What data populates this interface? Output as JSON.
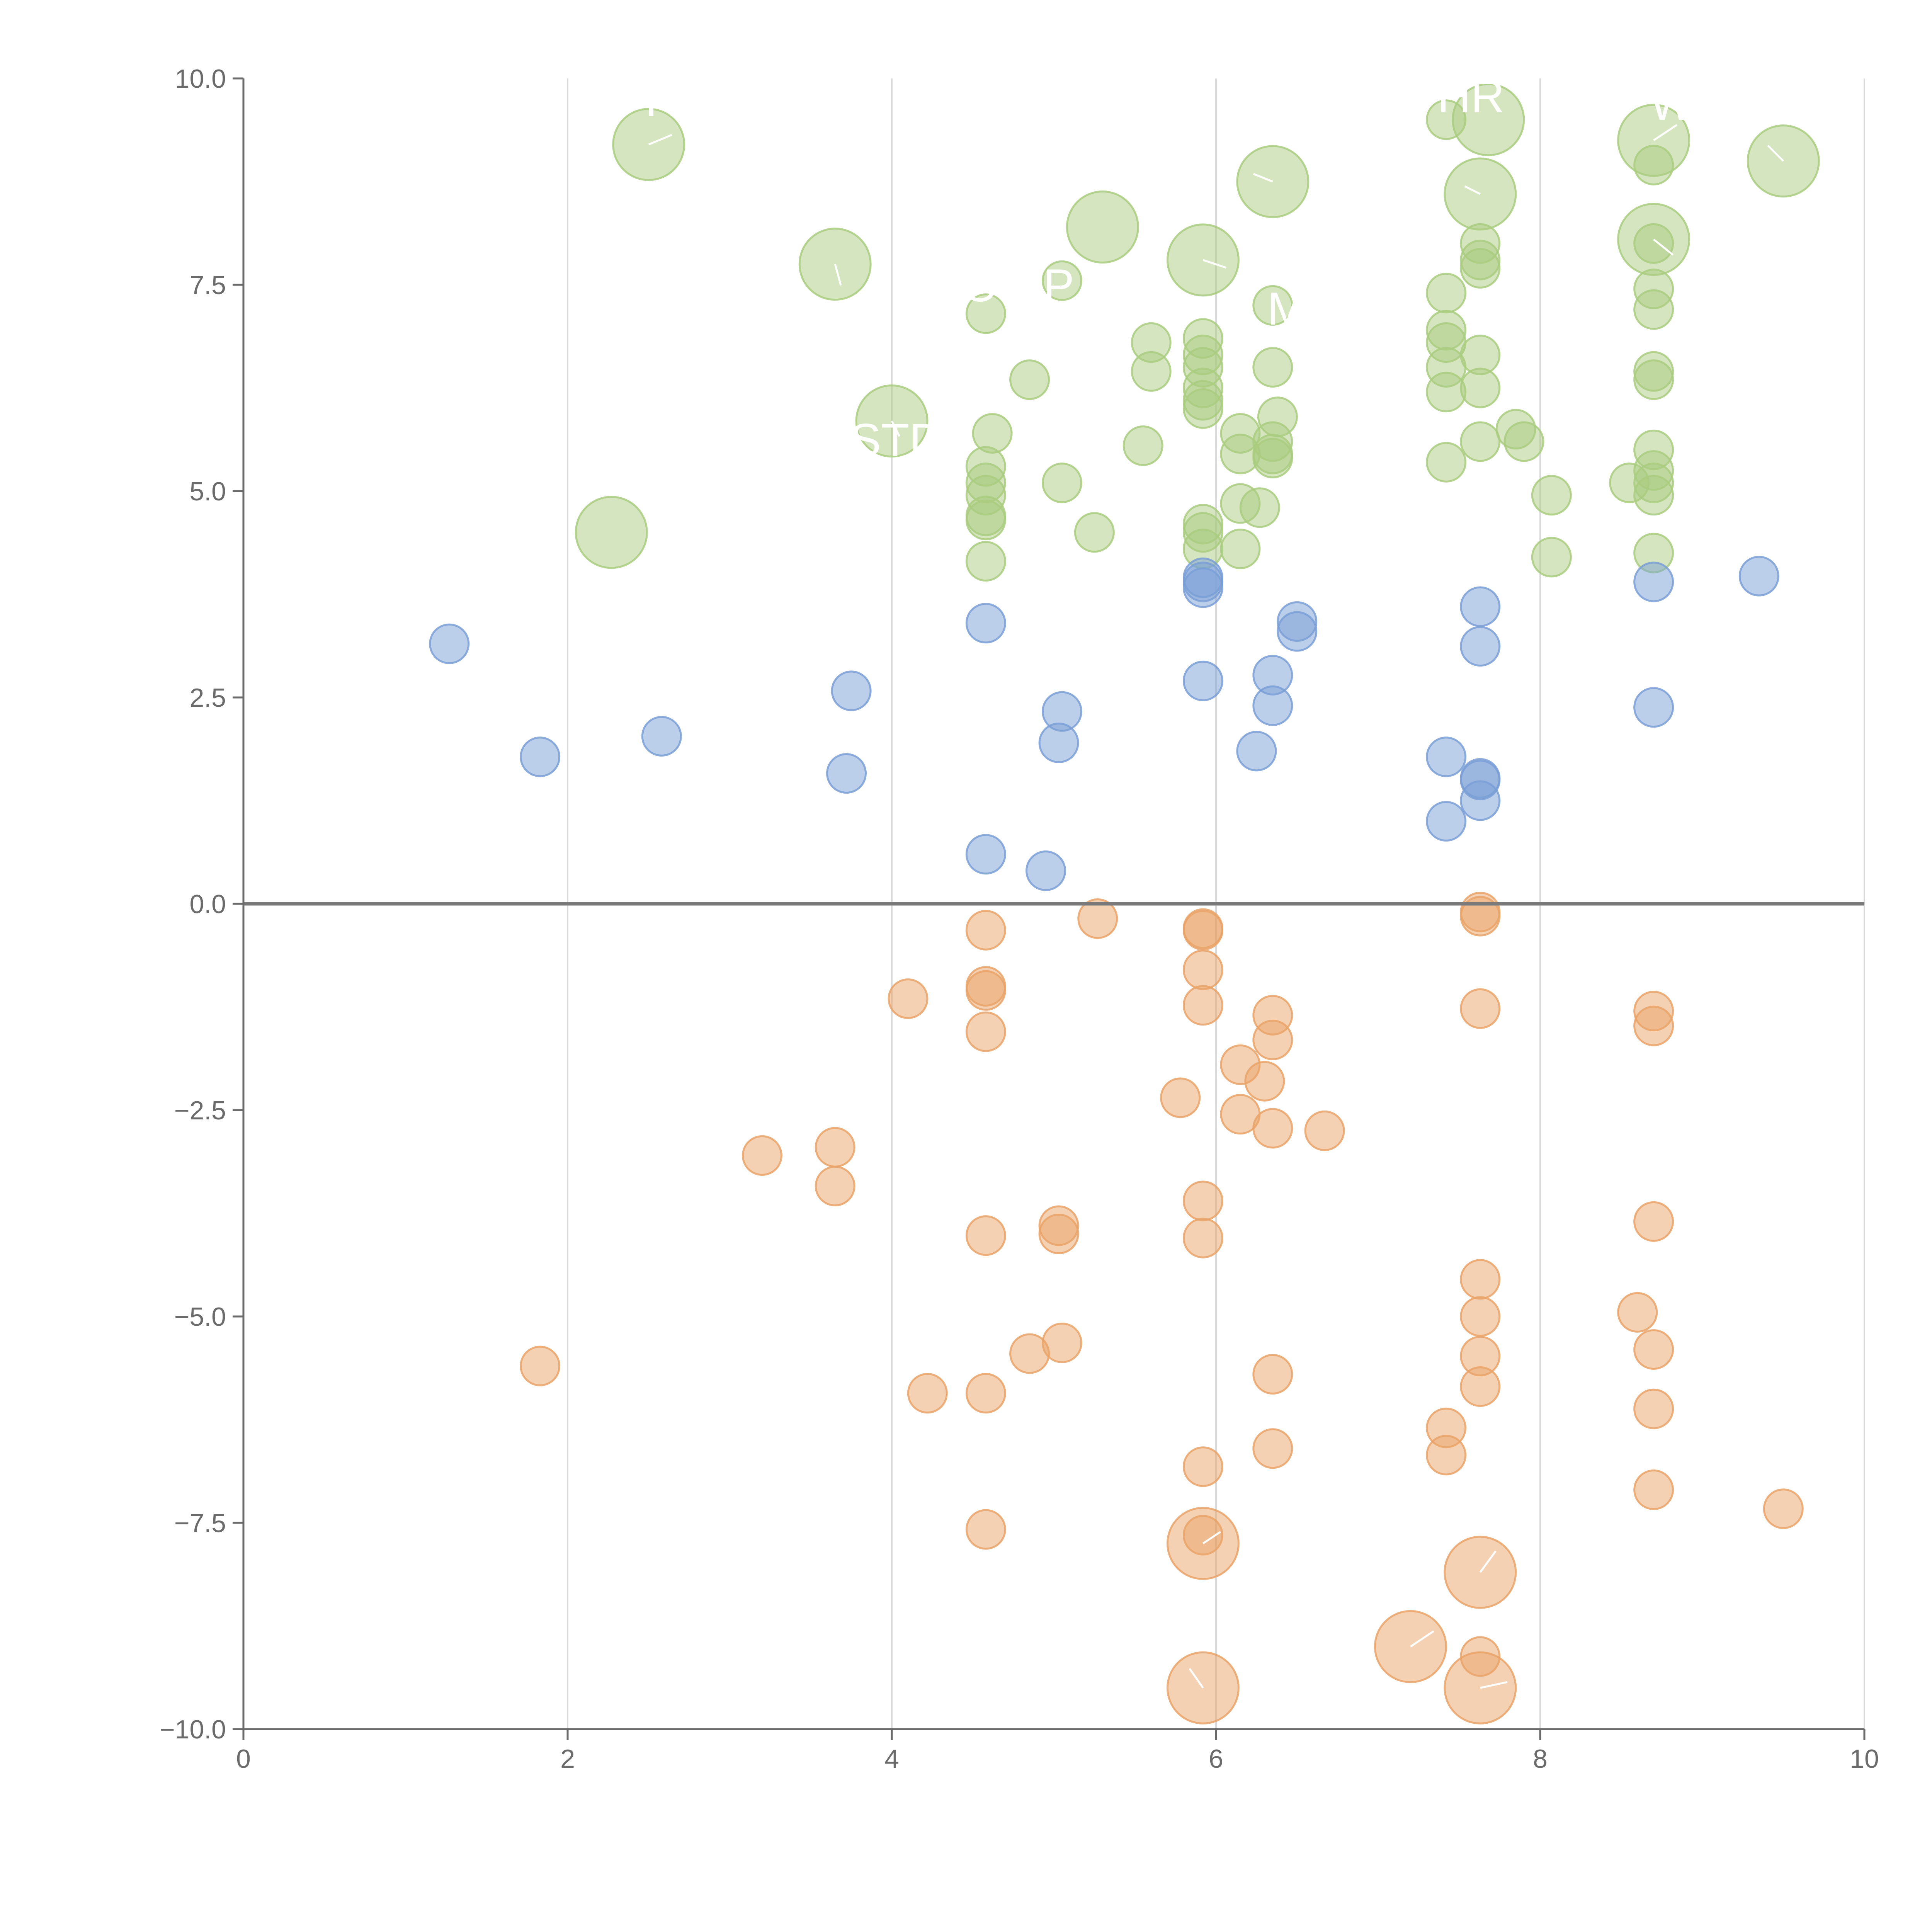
{
  "chart_data": {
    "type": "scatter",
    "title": "",
    "xlabel": "",
    "ylabel": "",
    "xlim": [
      0,
      10
    ],
    "ylim": [
      -10,
      10
    ],
    "grid": "vertical",
    "zero_line": true,
    "x_ticks": [
      "0",
      "2",
      "4",
      "6",
      "8",
      "10"
    ],
    "x_tick_values": [
      0,
      2,
      4,
      6,
      8,
      10
    ],
    "y_ticks": [
      "10.0",
      "7.5",
      "5.0",
      "2.5",
      "0.0",
      "−2.5",
      "−5.0",
      "−7.5",
      "−10.0"
    ],
    "y_tick_values": [
      10,
      7.5,
      5,
      2.5,
      0,
      -2.5,
      -5,
      -7.5,
      -10
    ],
    "colors": {
      "green": "#a9cc7f",
      "blue": "#7a9fd6",
      "orange": "#e9a368",
      "axis": "#6b6b6b",
      "grid": "#d9d9d9"
    },
    "annotations": [
      "H",
      "HR",
      "W",
      "O",
      "P",
      "M",
      "STD"
    ],
    "series": [
      {
        "name": "green",
        "color": "#a9cc7f",
        "points": [
          [
            2.5,
            9.2,
            2
          ],
          [
            3.65,
            7.75,
            2
          ],
          [
            4.0,
            5.85,
            2
          ],
          [
            2.27,
            4.5,
            2
          ],
          [
            5.3,
            8.2,
            2
          ],
          [
            5.92,
            7.8,
            2
          ],
          [
            6.35,
            8.75,
            2
          ],
          [
            7.68,
            9.5,
            2
          ],
          [
            7.63,
            8.6,
            2
          ],
          [
            8.7,
            9.25,
            2
          ],
          [
            8.7,
            8.05,
            2
          ],
          [
            9.5,
            9.0,
            2
          ],
          [
            7.42,
            9.5,
            1
          ],
          [
            8.7,
            8.95,
            1
          ],
          [
            7.63,
            8.0,
            1
          ],
          [
            7.63,
            7.8,
            1
          ],
          [
            7.63,
            7.7,
            1
          ],
          [
            8.7,
            8.0,
            1
          ],
          [
            8.7,
            7.45,
            1
          ],
          [
            8.7,
            7.2,
            1
          ],
          [
            7.42,
            7.4,
            1
          ],
          [
            7.42,
            6.95,
            1
          ],
          [
            7.42,
            6.8,
            1
          ],
          [
            7.42,
            6.5,
            1
          ],
          [
            7.42,
            6.2,
            1
          ],
          [
            7.63,
            6.65,
            1
          ],
          [
            7.63,
            6.25,
            1
          ],
          [
            7.63,
            5.6,
            1
          ],
          [
            7.42,
            5.35,
            1
          ],
          [
            7.85,
            5.75,
            1
          ],
          [
            7.9,
            5.6,
            1
          ],
          [
            8.07,
            4.95,
            1
          ],
          [
            8.07,
            4.2,
            1
          ],
          [
            8.55,
            5.1,
            1
          ],
          [
            8.7,
            6.45,
            1
          ],
          [
            8.7,
            6.35,
            1
          ],
          [
            8.7,
            5.5,
            1
          ],
          [
            8.7,
            5.25,
            1
          ],
          [
            8.7,
            5.1,
            1
          ],
          [
            8.7,
            4.95,
            1
          ],
          [
            8.7,
            4.25,
            1
          ],
          [
            5.05,
            7.55,
            1
          ],
          [
            4.58,
            7.15,
            1
          ],
          [
            4.85,
            6.35,
            1
          ],
          [
            5.6,
            6.8,
            1
          ],
          [
            5.6,
            6.45,
            1
          ],
          [
            5.92,
            6.85,
            1
          ],
          [
            5.92,
            6.65,
            1
          ],
          [
            5.92,
            6.5,
            1
          ],
          [
            5.92,
            6.25,
            1
          ],
          [
            5.92,
            6.1,
            1
          ],
          [
            5.92,
            6.0,
            1
          ],
          [
            6.35,
            7.25,
            1
          ],
          [
            6.35,
            6.5,
            1
          ],
          [
            6.38,
            5.9,
            1
          ],
          [
            6.15,
            5.7,
            1
          ],
          [
            6.15,
            5.45,
            1
          ],
          [
            6.35,
            5.6,
            1
          ],
          [
            6.35,
            5.45,
            1
          ],
          [
            6.35,
            5.4,
            1
          ],
          [
            5.55,
            5.55,
            1
          ],
          [
            4.62,
            5.7,
            1
          ],
          [
            4.58,
            5.3,
            1
          ],
          [
            4.58,
            5.1,
            1
          ],
          [
            4.58,
            4.95,
            1
          ],
          [
            4.58,
            4.7,
            1
          ],
          [
            4.58,
            4.65,
            1
          ],
          [
            4.58,
            4.15,
            1
          ],
          [
            5.05,
            5.1,
            1
          ],
          [
            5.25,
            4.5,
            1
          ],
          [
            5.92,
            4.6,
            1
          ],
          [
            5.92,
            4.5,
            1
          ],
          [
            5.92,
            4.3,
            1
          ],
          [
            6.15,
            4.3,
            1
          ],
          [
            6.15,
            4.85,
            1
          ],
          [
            6.27,
            4.8,
            1
          ]
        ]
      },
      {
        "name": "blue",
        "color": "#7a9fd6",
        "points": [
          [
            1.27,
            3.15,
            1
          ],
          [
            1.83,
            1.78,
            1
          ],
          [
            2.58,
            2.03,
            1
          ],
          [
            3.75,
            2.58,
            1
          ],
          [
            3.72,
            1.58,
            1
          ],
          [
            4.58,
            3.4,
            1
          ],
          [
            4.58,
            0.6,
            1
          ],
          [
            4.95,
            0.4,
            1
          ],
          [
            5.05,
            2.33,
            1
          ],
          [
            5.03,
            1.95,
            1
          ],
          [
            5.92,
            3.95,
            1
          ],
          [
            5.92,
            3.9,
            1
          ],
          [
            5.92,
            3.83,
            1
          ],
          [
            5.92,
            2.7,
            1
          ],
          [
            6.5,
            3.42,
            1
          ],
          [
            6.5,
            3.3,
            1
          ],
          [
            6.35,
            2.77,
            1
          ],
          [
            6.35,
            2.4,
            1
          ],
          [
            6.25,
            1.85,
            1
          ],
          [
            7.42,
            1.78,
            1
          ],
          [
            7.42,
            1.0,
            1
          ],
          [
            7.63,
            3.6,
            1
          ],
          [
            7.63,
            3.12,
            1
          ],
          [
            7.63,
            1.52,
            1
          ],
          [
            7.63,
            1.5,
            1
          ],
          [
            7.63,
            1.25,
            1
          ],
          [
            8.7,
            3.9,
            1
          ],
          [
            8.7,
            2.38,
            1
          ],
          [
            9.35,
            3.97,
            1
          ]
        ]
      },
      {
        "name": "orange",
        "color": "#e9a368",
        "points": [
          [
            5.27,
            -0.18,
            1
          ],
          [
            4.58,
            -0.32,
            1
          ],
          [
            5.92,
            -0.3,
            1
          ],
          [
            5.92,
            -0.32,
            1
          ],
          [
            5.92,
            -0.8,
            1
          ],
          [
            5.92,
            -1.23,
            1
          ],
          [
            4.1,
            -1.15,
            1
          ],
          [
            4.58,
            -1.0,
            1
          ],
          [
            4.58,
            -1.05,
            1
          ],
          [
            4.58,
            -1.55,
            1
          ],
          [
            7.63,
            -0.1,
            1
          ],
          [
            7.63,
            -0.15,
            1
          ],
          [
            7.63,
            -1.27,
            1
          ],
          [
            6.35,
            -1.35,
            1
          ],
          [
            6.35,
            -1.65,
            1
          ],
          [
            6.15,
            -1.95,
            1
          ],
          [
            6.3,
            -2.15,
            1
          ],
          [
            5.78,
            -2.35,
            1
          ],
          [
            6.15,
            -2.55,
            1
          ],
          [
            6.35,
            -2.72,
            1
          ],
          [
            6.67,
            -2.75,
            1
          ],
          [
            3.2,
            -3.05,
            1
          ],
          [
            3.65,
            -2.95,
            1
          ],
          [
            3.65,
            -3.42,
            1
          ],
          [
            5.92,
            -3.6,
            1
          ],
          [
            5.92,
            -4.05,
            1
          ],
          [
            4.58,
            -4.02,
            1
          ],
          [
            5.03,
            -3.9,
            1
          ],
          [
            5.03,
            -4.0,
            1
          ],
          [
            8.7,
            -1.3,
            1
          ],
          [
            8.7,
            -1.48,
            1
          ],
          [
            8.7,
            -3.85,
            1
          ],
          [
            7.63,
            -4.55,
            1
          ],
          [
            7.63,
            -5.0,
            1
          ],
          [
            7.63,
            -5.48,
            1
          ],
          [
            7.63,
            -5.85,
            1
          ],
          [
            8.6,
            -4.95,
            1
          ],
          [
            8.7,
            -5.4,
            1
          ],
          [
            8.7,
            -6.12,
            1
          ],
          [
            8.7,
            -7.1,
            1
          ],
          [
            9.5,
            -7.33,
            1
          ],
          [
            1.83,
            -5.6,
            1
          ],
          [
            4.22,
            -5.93,
            1
          ],
          [
            4.58,
            -5.93,
            1
          ],
          [
            4.85,
            -5.45,
            1
          ],
          [
            5.05,
            -5.32,
            1
          ],
          [
            6.35,
            -5.7,
            1
          ],
          [
            6.35,
            -6.6,
            1
          ],
          [
            5.92,
            -6.82,
            1
          ],
          [
            7.42,
            -6.35,
            1
          ],
          [
            7.42,
            -6.68,
            1
          ],
          [
            4.58,
            -7.58,
            1
          ],
          [
            5.92,
            -7.65,
            1
          ],
          [
            5.92,
            -7.75,
            2
          ],
          [
            7.63,
            -8.1,
            2
          ],
          [
            7.2,
            -9.0,
            2
          ],
          [
            5.92,
            -9.5,
            2
          ],
          [
            7.63,
            -9.5,
            2
          ],
          [
            7.63,
            -9.12,
            1
          ]
        ]
      }
    ]
  }
}
